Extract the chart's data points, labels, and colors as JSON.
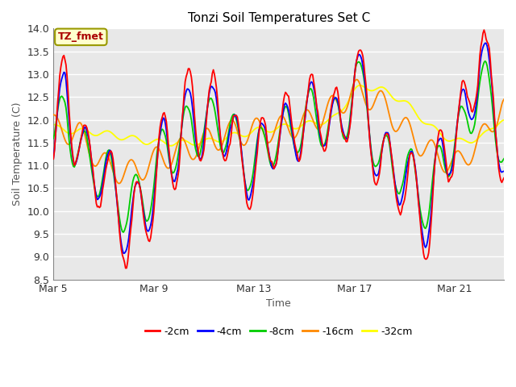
{
  "title": "Tonzi Soil Temperatures Set C",
  "xlabel": "Time",
  "ylabel": "Soil Temperature (C)",
  "annotation": "TZ_fmet",
  "ylim": [
    8.5,
    14.0
  ],
  "yticks": [
    8.5,
    9.0,
    9.5,
    10.0,
    10.5,
    11.0,
    11.5,
    12.0,
    12.5,
    13.0,
    13.5,
    14.0
  ],
  "xtick_labels": [
    "Mar 5",
    "Mar 9",
    "Mar 13",
    "Mar 17",
    "Mar 21"
  ],
  "xtick_positions": [
    0,
    96,
    192,
    288,
    384
  ],
  "series_colors": [
    "#ff0000",
    "#0000ff",
    "#00cc00",
    "#ff8800",
    "#ffff00"
  ],
  "series_labels": [
    "-2cm",
    "-4cm",
    "-8cm",
    "-16cm",
    "-32cm"
  ],
  "plot_bg_color": "#e8e8e8",
  "annotation_bg": "#ffffcc",
  "annotation_border": "#999900",
  "grid_color": "#ffffff",
  "n_points": 432
}
